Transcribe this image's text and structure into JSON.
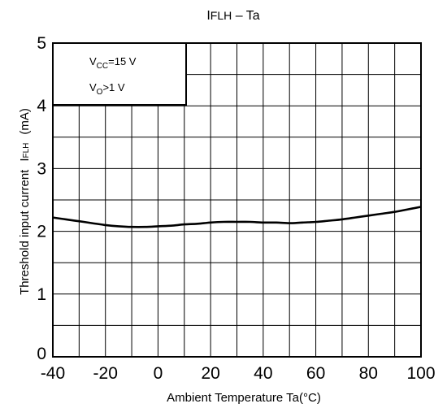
{
  "chart_data": {
    "type": "line",
    "title": {
      "main": "I",
      "sub": "FLH",
      "rest": " – Ta"
    },
    "xlabel": "Ambient Temperature Ta(°C)",
    "ylabel": {
      "text": "Threshold input current",
      "symbol_main": "I",
      "symbol_sub": "FLH",
      "unit": "(mA)"
    },
    "xlim": [
      -40,
      100
    ],
    "ylim": [
      0,
      5
    ],
    "x_ticks": [
      "-40",
      "-20",
      "0",
      "20",
      "40",
      "60",
      "80",
      "100"
    ],
    "y_ticks": [
      "0",
      "1",
      "2",
      "3",
      "4",
      "5"
    ],
    "grid": true,
    "conditions": [
      {
        "main": "V",
        "sub": "CC",
        "rest": "=15 V"
      },
      {
        "main": "V",
        "sub": "O",
        "rest": ">1 V"
      }
    ],
    "series": [
      {
        "x": [
          -40,
          -35,
          -30,
          -25,
          -20,
          -15,
          -10,
          -5,
          0,
          5,
          10,
          15,
          20,
          25,
          30,
          35,
          40,
          45,
          50,
          55,
          60,
          65,
          70,
          75,
          80,
          85,
          90,
          95,
          100
        ],
        "y": [
          2.22,
          2.19,
          2.16,
          2.13,
          2.1,
          2.08,
          2.07,
          2.07,
          2.08,
          2.09,
          2.11,
          2.12,
          2.14,
          2.15,
          2.15,
          2.15,
          2.14,
          2.14,
          2.13,
          2.14,
          2.15,
          2.17,
          2.19,
          2.22,
          2.25,
          2.28,
          2.31,
          2.35,
          2.39
        ]
      }
    ]
  }
}
